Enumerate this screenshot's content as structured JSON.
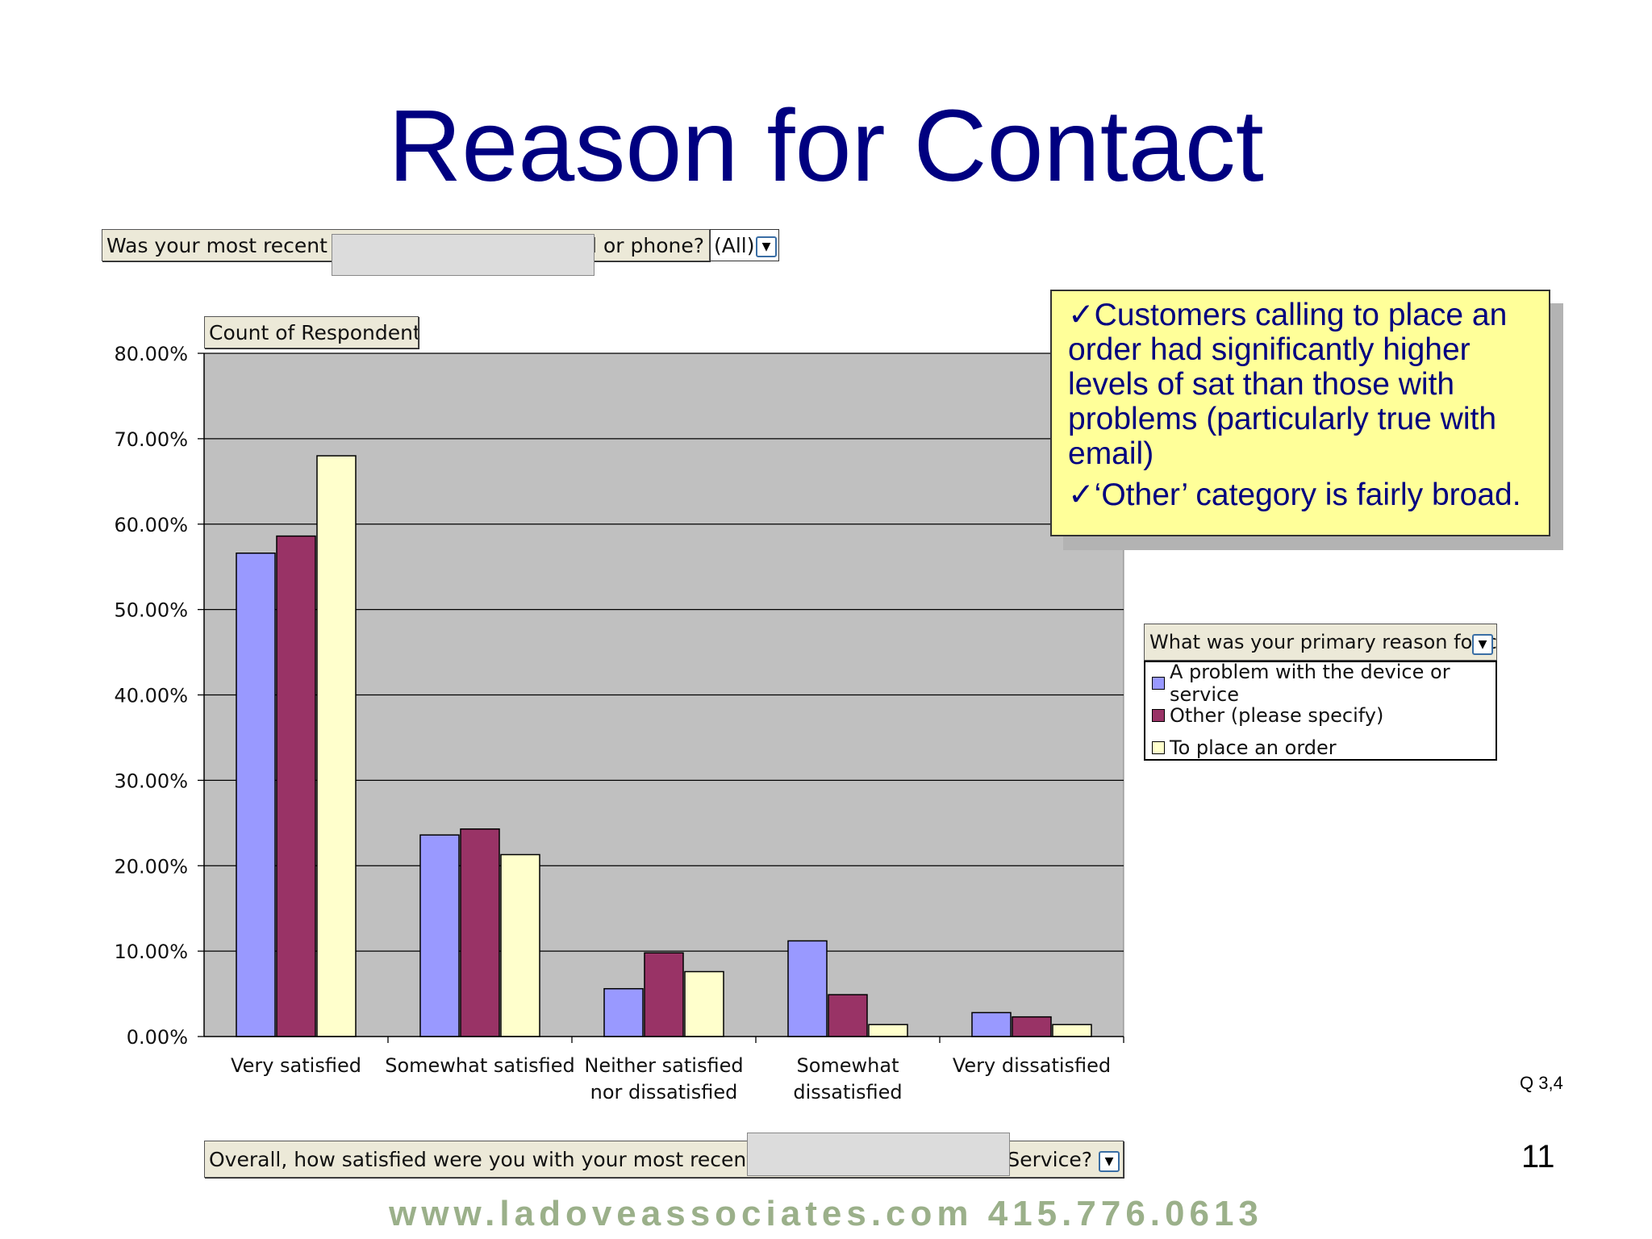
{
  "slide": {
    "title": "Reason for Contact",
    "question_ref": "Q 3,4",
    "page_number": "11",
    "footer": "www.ladoveassociates.com   415.776.0613"
  },
  "pivot": {
    "page_field_left": "Was your most recent co",
    "page_field_right": "ail or phone?",
    "page_field_value": "(All)",
    "data_field": "Count of RespondentID",
    "category_field_left": "Overall, how satisfied were you with your most recent conta",
    "category_field_right": "r Service?",
    "series_field": "What was your primary reason for c"
  },
  "callout": {
    "point1": "✓Customers calling to place an order had significantly higher levels of sat than those with problems (particularly true with email)",
    "point2": "✓‘Other’ category is fairly broad."
  },
  "colors": {
    "plot_bg": "#c0c0c0",
    "series": [
      "#9999ff",
      "#993366",
      "#ffffcc"
    ],
    "title": "#000080",
    "callout_bg": "#ffff99"
  },
  "chart_data": {
    "type": "bar",
    "categories": [
      "Very satisfied",
      "Somewhat satisfied",
      "Neither satisfied nor dissatisfied",
      "Somewhat dissatisfied",
      "Very dissatisfied"
    ],
    "category_lines": [
      [
        "Very satisfied"
      ],
      [
        "Somewhat satisfied"
      ],
      [
        "Neither satisfied",
        "nor dissatisfied"
      ],
      [
        "Somewhat",
        "dissatisfied"
      ],
      [
        "Very dissatisfied"
      ]
    ],
    "series": [
      {
        "name": "A problem with the device or service",
        "values": [
          56.6,
          23.6,
          5.6,
          11.2,
          2.8
        ]
      },
      {
        "name": "Other (please specify)",
        "values": [
          58.6,
          24.3,
          9.8,
          4.9,
          2.3
        ]
      },
      {
        "name": "To place an order",
        "values": [
          68.0,
          21.3,
          7.6,
          1.4,
          1.4
        ]
      }
    ],
    "ylim": [
      0,
      80
    ],
    "yticks": [
      "0.00%",
      "10.00%",
      "20.00%",
      "30.00%",
      "40.00%",
      "50.00%",
      "60.00%",
      "70.00%",
      "80.00%"
    ],
    "grid": true,
    "legend_position": "right"
  }
}
